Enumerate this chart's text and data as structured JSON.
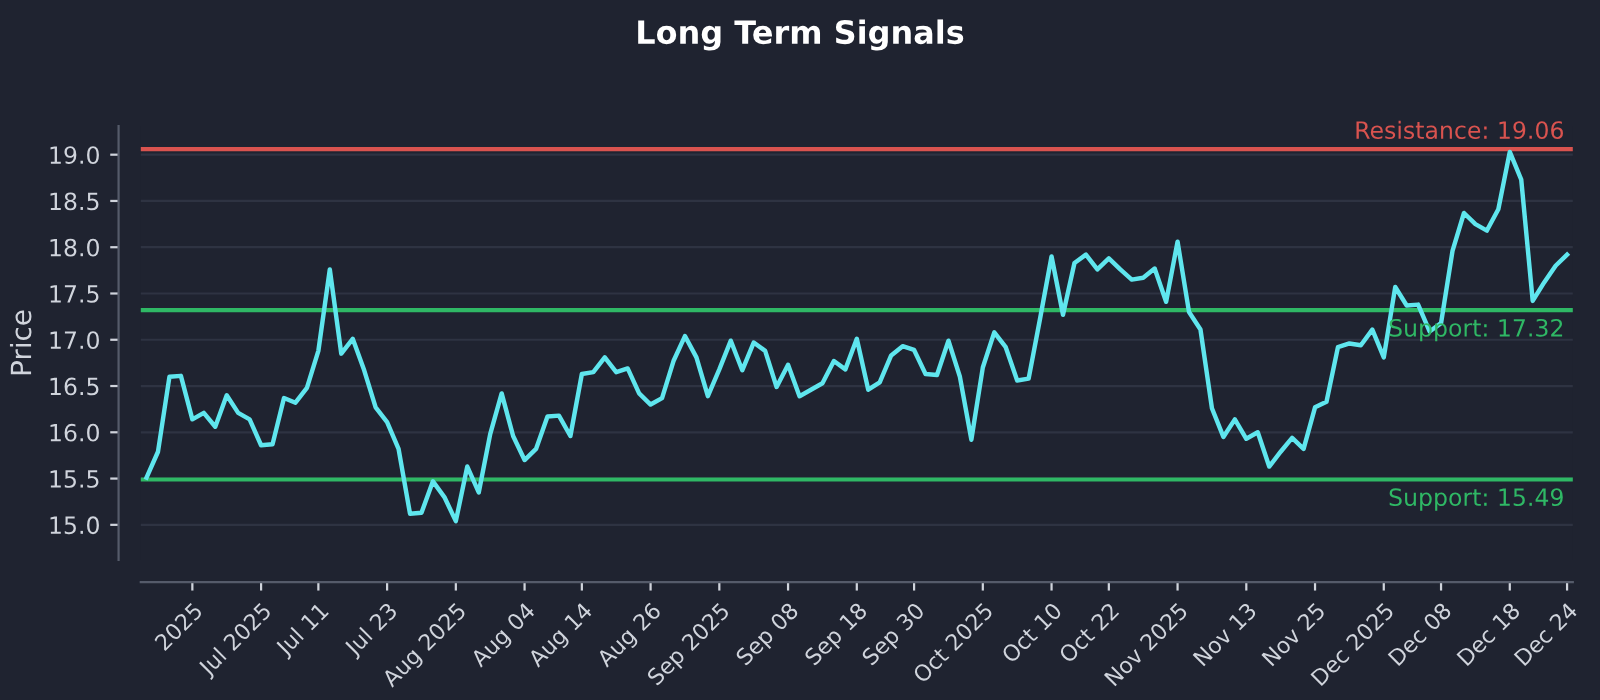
{
  "chart_data": {
    "type": "line",
    "title": "Long Term Signals",
    "ylabel": "Price",
    "categories": [
      null,
      null,
      null,
      null,
      "2025",
      null,
      null,
      null,
      null,
      null,
      "Jul 2025",
      null,
      null,
      null,
      null,
      "Jul 11",
      null,
      null,
      null,
      null,
      null,
      "Jul 23",
      null,
      null,
      null,
      null,
      null,
      "Aug 2025",
      null,
      null,
      null,
      null,
      null,
      "Aug 04",
      null,
      null,
      null,
      null,
      "Aug 14",
      null,
      null,
      null,
      null,
      null,
      "Aug 26",
      null,
      null,
      null,
      null,
      null,
      "Sep 2025",
      null,
      null,
      null,
      null,
      null,
      "Sep 08",
      null,
      null,
      null,
      null,
      null,
      "Sep 18",
      null,
      null,
      null,
      null,
      "Sep 30",
      null,
      null,
      null,
      null,
      null,
      "Oct 2025",
      null,
      null,
      null,
      null,
      null,
      "Oct 10",
      null,
      null,
      null,
      null,
      "Oct 22",
      null,
      null,
      null,
      null,
      null,
      "Nov 2025",
      null,
      null,
      null,
      null,
      null,
      "Nov 13",
      null,
      null,
      null,
      null,
      null,
      "Nov 25",
      null,
      null,
      null,
      null,
      null,
      "Dec 2025",
      null,
      null,
      null,
      null,
      "Dec 08",
      null,
      null,
      null,
      null,
      null,
      "Dec 18",
      null,
      null,
      null,
      null,
      "Dec 24"
    ],
    "series": [
      {
        "color": "#5fe6ee",
        "values": [
          15.51,
          15.79,
          16.6,
          16.61,
          16.14,
          16.21,
          16.06,
          16.4,
          16.21,
          16.14,
          15.86,
          15.87,
          16.37,
          16.32,
          16.48,
          16.88,
          17.76,
          16.85,
          17.01,
          16.67,
          16.27,
          16.11,
          15.82,
          15.12,
          15.13,
          15.47,
          15.3,
          15.04,
          15.63,
          15.35,
          15.98,
          16.42,
          15.96,
          15.7,
          15.82,
          16.17,
          16.18,
          15.96,
          16.63,
          16.65,
          16.81,
          16.65,
          16.69,
          16.42,
          16.3,
          16.37,
          16.77,
          17.04,
          16.81,
          16.39,
          16.68,
          16.99,
          16.67,
          16.97,
          16.88,
          16.49,
          16.73,
          16.39,
          16.46,
          16.53,
          16.77,
          16.68,
          17.01,
          16.46,
          16.54,
          16.83,
          16.93,
          16.89,
          16.63,
          16.62,
          16.99,
          16.6,
          15.92,
          16.7,
          17.08,
          16.92,
          16.56,
          16.58,
          17.23,
          17.9,
          17.27,
          17.83,
          17.92,
          17.76,
          17.88,
          17.76,
          17.65,
          17.67,
          17.77,
          17.41,
          18.06,
          17.3,
          17.11,
          16.26,
          15.95,
          16.14,
          15.93,
          16.0,
          15.63,
          15.79,
          15.94,
          15.82,
          16.27,
          16.33,
          16.92,
          16.96,
          16.94,
          17.11,
          16.81,
          17.57,
          17.37,
          17.38,
          17.09,
          17.18,
          17.96,
          18.37,
          18.25,
          18.18,
          18.41,
          19.03,
          18.73,
          17.42,
          17.62,
          17.8,
          17.92
        ]
      }
    ],
    "ylim": [
      14.62,
      19.31
    ],
    "yticks": [
      {
        "value": 15,
        "label": "15.0"
      },
      15.5,
      {
        "value": 16,
        "label": "16.0"
      },
      16.5,
      {
        "value": 17,
        "label": "17.0"
      },
      17.5,
      {
        "value": 18,
        "label": "18.0"
      },
      18.5,
      {
        "value": 19,
        "label": "19.0"
      }
    ],
    "grid": "y",
    "ref_lines": [
      {
        "axis": "y",
        "value": 19.06,
        "label": "Resistance: 19.06",
        "color": "#d9534f"
      },
      {
        "axis": "y",
        "value": 17.32,
        "label": "Support: 17.32",
        "color": "#2fb865"
      },
      {
        "axis": "y",
        "value": 15.49,
        "label": "Support: 15.49",
        "color": "#2fb865"
      }
    ]
  }
}
